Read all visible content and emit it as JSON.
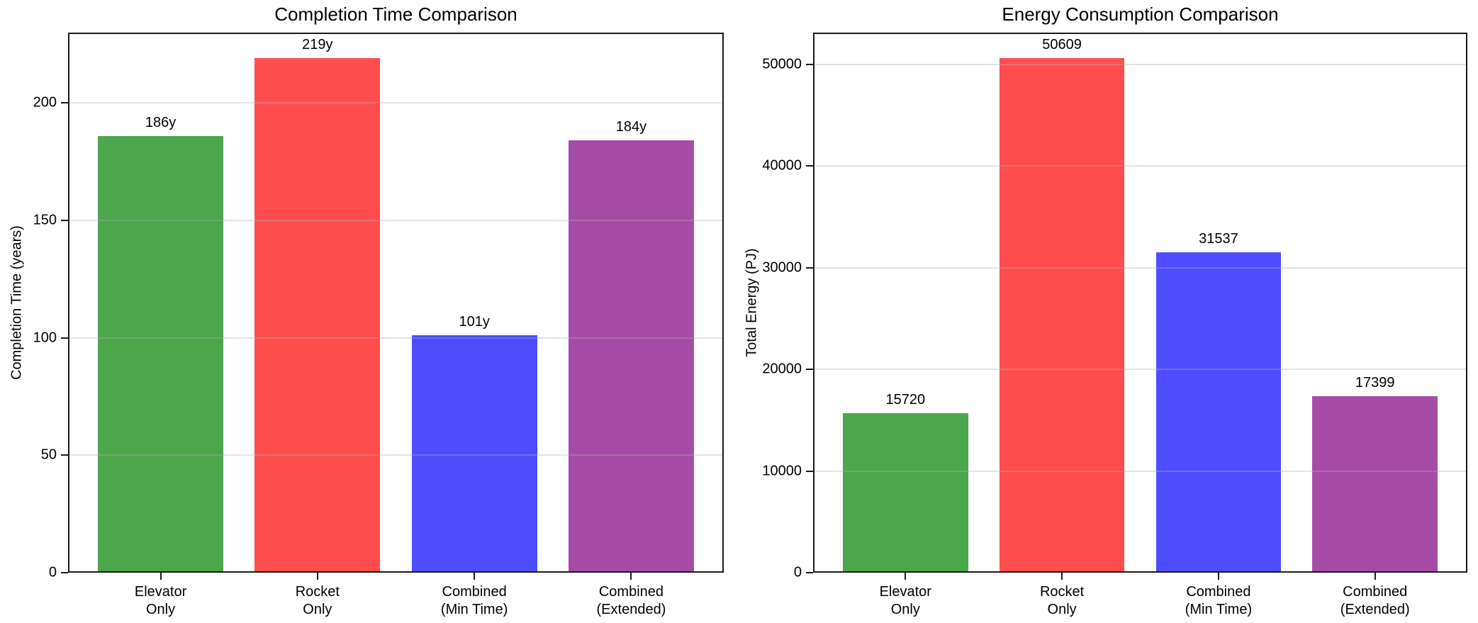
{
  "figure": {
    "background": "#ffffff",
    "grid_color": "#b0b0b0",
    "spine_color": "#1a1a1a"
  },
  "chart_data": [
    {
      "type": "bar",
      "title": "Completion Time Comparison",
      "xlabel": "",
      "ylabel": "Completion Time (years)",
      "categories": [
        "Elevator\nOnly",
        "Rocket\nOnly",
        "Combined\n(Min Time)",
        "Combined\n(Extended)"
      ],
      "values": [
        186,
        219,
        101,
        184
      ],
      "bar_labels": [
        "186y",
        "219y",
        "101y",
        "184y"
      ],
      "colors": [
        "#4ca64c",
        "#ff4d4d",
        "#4d4dff",
        "#a64ca6"
      ],
      "ylim": [
        0,
        229.95
      ],
      "yticks": [
        0,
        50,
        100,
        150,
        200
      ],
      "grid": true,
      "legend": "none"
    },
    {
      "type": "bar",
      "title": "Energy Consumption Comparison",
      "xlabel": "",
      "ylabel": "Total Energy (PJ)",
      "categories": [
        "Elevator\nOnly",
        "Rocket\nOnly",
        "Combined\n(Min Time)",
        "Combined\n(Extended)"
      ],
      "values": [
        15720,
        50609,
        31537,
        17399
      ],
      "bar_labels": [
        "15720",
        "50609",
        "31537",
        "17399"
      ],
      "colors": [
        "#4ca64c",
        "#ff4d4d",
        "#4d4dff",
        "#a64ca6"
      ],
      "ylim": [
        0,
        53139
      ],
      "yticks": [
        0,
        10000,
        20000,
        30000,
        40000,
        50000
      ],
      "grid": true,
      "legend": "none"
    }
  ]
}
